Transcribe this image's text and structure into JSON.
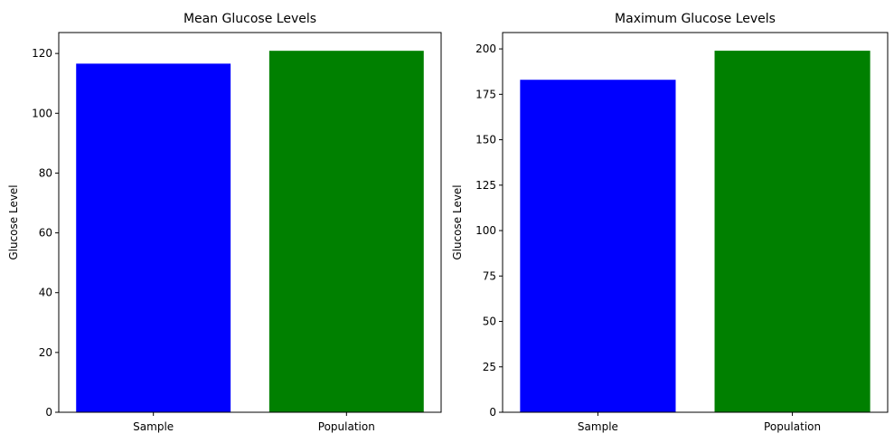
{
  "chart_data": [
    {
      "type": "bar",
      "title": "Mean Glucose Levels",
      "xlabel": "",
      "ylabel": "Glucose Level",
      "categories": [
        "Sample",
        "Population"
      ],
      "values": [
        116.6,
        120.9
      ],
      "colors": [
        "#0000ff",
        "#008000"
      ],
      "ylim": [
        0,
        127
      ],
      "yticks": [
        0,
        20,
        40,
        60,
        80,
        100,
        120
      ],
      "grid": false,
      "legend": "none"
    },
    {
      "type": "bar",
      "title": "Maximum Glucose Levels",
      "xlabel": "",
      "ylabel": "Glucose Level",
      "categories": [
        "Sample",
        "Population"
      ],
      "values": [
        183,
        199
      ],
      "colors": [
        "#0000ff",
        "#008000"
      ],
      "ylim": [
        0,
        209
      ],
      "yticks": [
        0,
        25,
        50,
        75,
        100,
        125,
        150,
        175,
        200
      ],
      "grid": false,
      "legend": "none"
    }
  ]
}
